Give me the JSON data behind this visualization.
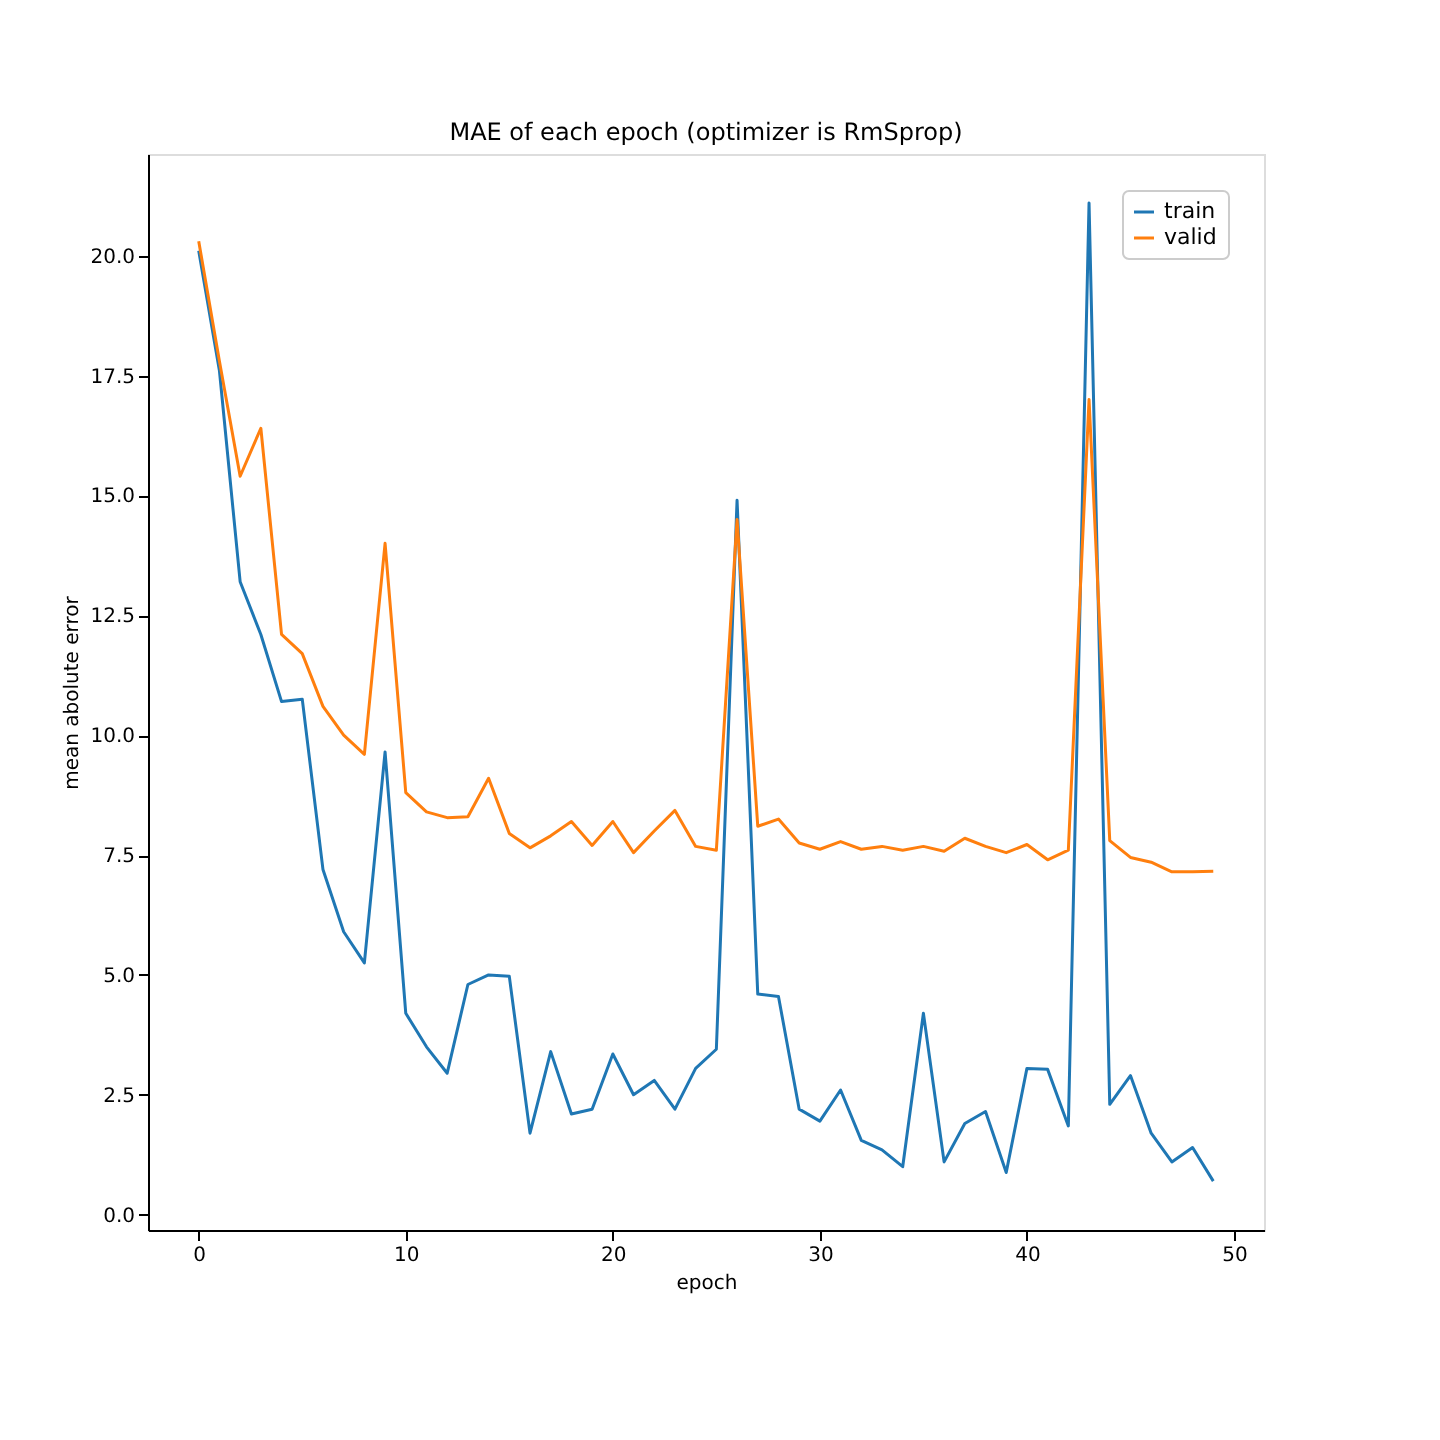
{
  "chart_data": {
    "type": "line",
    "title": "MAE of each epoch (optimizer is RmSprop)",
    "xlabel": "epoch",
    "ylabel": "mean abolute error",
    "x": [
      0,
      1,
      2,
      3,
      4,
      5,
      6,
      7,
      8,
      9,
      10,
      11,
      12,
      13,
      14,
      15,
      16,
      17,
      18,
      19,
      20,
      21,
      22,
      23,
      24,
      25,
      26,
      27,
      28,
      29,
      30,
      31,
      32,
      33,
      34,
      35,
      36,
      37,
      38,
      39,
      40,
      41,
      42,
      43,
      44,
      45,
      46,
      47,
      48,
      49
    ],
    "series": [
      {
        "name": "train",
        "color": "#1f77b4",
        "values": [
          20.1,
          17.6,
          13.2,
          12.1,
          10.7,
          10.75,
          7.2,
          5.9,
          5.25,
          9.65,
          4.2,
          3.5,
          2.95,
          4.8,
          5.0,
          4.97,
          1.7,
          3.4,
          2.1,
          2.2,
          3.35,
          2.5,
          2.8,
          2.2,
          3.05,
          3.45,
          14.9,
          4.6,
          4.55,
          2.2,
          1.95,
          2.6,
          1.55,
          1.35,
          1.0,
          4.2,
          1.1,
          1.9,
          2.15,
          0.88,
          3.05,
          3.03,
          1.85,
          21.1,
          2.3,
          2.9,
          1.7,
          1.1,
          1.4,
          0.7
        ]
      },
      {
        "name": "valid",
        "color": "#ff7f0e",
        "values": [
          20.3,
          17.8,
          15.4,
          16.4,
          12.1,
          11.7,
          10.6,
          10.0,
          9.6,
          14.0,
          8.8,
          8.4,
          8.28,
          8.3,
          9.1,
          7.95,
          7.65,
          7.9,
          8.2,
          7.7,
          8.2,
          7.55,
          8.0,
          8.43,
          7.68,
          7.6,
          14.5,
          8.1,
          8.25,
          7.75,
          7.62,
          7.78,
          7.62,
          7.68,
          7.6,
          7.68,
          7.58,
          7.85,
          7.68,
          7.55,
          7.72,
          7.4,
          7.6,
          17.0,
          7.8,
          7.45,
          7.35,
          7.15,
          7.15,
          7.16
        ]
      }
    ],
    "xlim": [
      -2.45,
      51.45
    ],
    "xticks": [
      0,
      10,
      20,
      30,
      40,
      50
    ],
    "ylim": [
      -0.32,
      22.12
    ],
    "yticks": [
      {
        "value": 0,
        "label": "0.0"
      },
      {
        "value": 2.5,
        "label": "2.5"
      },
      {
        "value": 5,
        "label": "5.0"
      },
      {
        "value": 7.5,
        "label": "7.5"
      },
      {
        "value": 10,
        "label": "10.0"
      },
      {
        "value": 12.5,
        "label": "12.5"
      },
      {
        "value": 15,
        "label": "15.0"
      },
      {
        "value": 17.5,
        "label": "17.5"
      },
      {
        "value": 20,
        "label": "20.0"
      }
    ],
    "legend": "top right",
    "grid": false,
    "marker": "none",
    "line_style": "solid"
  }
}
